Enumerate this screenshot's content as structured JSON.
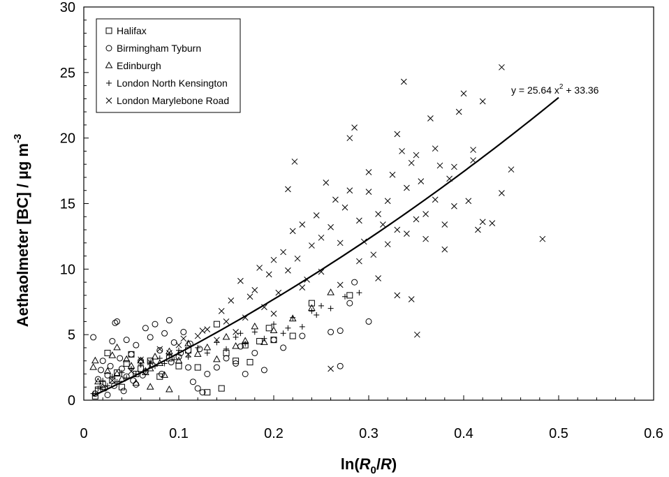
{
  "chart_data": {
    "type": "scatter",
    "xlabel": {
      "pre": "ln(",
      "r0": "R",
      "sub": "0",
      "mid": "/",
      "r": "R",
      "post": ")"
    },
    "ylabel": {
      "text": "Aethaolmeter [BC] / µg m",
      "sup": "-3"
    },
    "xlim": [
      0,
      0.6
    ],
    "ylim": [
      0,
      30
    ],
    "x_ticks": [
      "0",
      "0.1",
      "0.2",
      "0.3",
      "0.4",
      "0.5",
      "0.6"
    ],
    "y_ticks": [
      "0",
      "5",
      "10",
      "15",
      "20",
      "25",
      "30"
    ],
    "legend_position": "top-left",
    "fit": {
      "label_main": "y = 25.64 x",
      "label_sup": "2",
      "label_tail": " + 33.36",
      "a": 25.64,
      "b": 33.36,
      "x_range": [
        0.01,
        0.5
      ]
    },
    "series": [
      {
        "name": "Halifax",
        "marker": "square",
        "points": [
          [
            0.012,
            0.3
          ],
          [
            0.015,
            0.8
          ],
          [
            0.02,
            1.2
          ],
          [
            0.025,
            3.6
          ],
          [
            0.03,
            1.5
          ],
          [
            0.035,
            2.1
          ],
          [
            0.04,
            1.0
          ],
          [
            0.045,
            2.8
          ],
          [
            0.05,
            3.5
          ],
          [
            0.055,
            2.0
          ],
          [
            0.06,
            2.4
          ],
          [
            0.07,
            3.0
          ],
          [
            0.08,
            1.8
          ],
          [
            0.09,
            3.2
          ],
          [
            0.1,
            2.6
          ],
          [
            0.11,
            3.8
          ],
          [
            0.12,
            2.5
          ],
          [
            0.13,
            0.6
          ],
          [
            0.145,
            0.9
          ],
          [
            0.15,
            3.6
          ],
          [
            0.16,
            3.0
          ],
          [
            0.17,
            4.2
          ],
          [
            0.175,
            2.9
          ],
          [
            0.185,
            4.5
          ],
          [
            0.195,
            5.5
          ],
          [
            0.2,
            4.6
          ],
          [
            0.22,
            4.9
          ],
          [
            0.24,
            7.4
          ],
          [
            0.28,
            8.0
          ],
          [
            0.14,
            5.8
          ]
        ]
      },
      {
        "name": "Birmingham Tyburn",
        "marker": "circle",
        "points": [
          [
            0.01,
            4.8
          ],
          [
            0.012,
            0.5
          ],
          [
            0.015,
            1.6
          ],
          [
            0.018,
            2.3
          ],
          [
            0.02,
            3.0
          ],
          [
            0.022,
            0.9
          ],
          [
            0.025,
            1.9
          ],
          [
            0.028,
            2.6
          ],
          [
            0.03,
            4.5
          ],
          [
            0.033,
            5.9
          ],
          [
            0.035,
            6.0
          ],
          [
            0.038,
            3.2
          ],
          [
            0.04,
            2.4
          ],
          [
            0.045,
            1.8
          ],
          [
            0.05,
            3.5
          ],
          [
            0.055,
            4.2
          ],
          [
            0.06,
            3.0
          ],
          [
            0.065,
            2.2
          ],
          [
            0.07,
            4.8
          ],
          [
            0.075,
            5.8
          ],
          [
            0.08,
            3.8
          ],
          [
            0.085,
            5.1
          ],
          [
            0.09,
            6.1
          ],
          [
            0.095,
            4.4
          ],
          [
            0.1,
            3.3
          ],
          [
            0.105,
            5.2
          ],
          [
            0.11,
            2.5
          ],
          [
            0.115,
            1.4
          ],
          [
            0.12,
            0.9
          ],
          [
            0.125,
            0.6
          ],
          [
            0.13,
            2.0
          ],
          [
            0.14,
            2.5
          ],
          [
            0.15,
            3.2
          ],
          [
            0.16,
            2.8
          ],
          [
            0.165,
            4.1
          ],
          [
            0.17,
            2.0
          ],
          [
            0.18,
            3.6
          ],
          [
            0.19,
            2.3
          ],
          [
            0.2,
            4.6
          ],
          [
            0.21,
            4.0
          ],
          [
            0.23,
            4.9
          ],
          [
            0.26,
            5.2
          ],
          [
            0.27,
            5.3
          ],
          [
            0.28,
            7.4
          ],
          [
            0.285,
            9.0
          ],
          [
            0.27,
            2.6
          ],
          [
            0.3,
            6.0
          ],
          [
            0.055,
            1.2
          ],
          [
            0.065,
            5.5
          ],
          [
            0.045,
            4.6
          ],
          [
            0.025,
            0.4
          ],
          [
            0.032,
            1.1
          ],
          [
            0.042,
            0.7
          ],
          [
            0.052,
            1.5
          ],
          [
            0.062,
            1.9
          ],
          [
            0.072,
            2.7
          ],
          [
            0.082,
            2.0
          ],
          [
            0.092,
            2.9
          ],
          [
            0.102,
            3.6
          ],
          [
            0.112,
            4.3
          ],
          [
            0.122,
            3.9
          ]
        ]
      },
      {
        "name": "Edinburgh",
        "marker": "triangle",
        "points": [
          [
            0.01,
            2.5
          ],
          [
            0.012,
            3.0
          ],
          [
            0.015,
            1.4
          ],
          [
            0.02,
            1.0
          ],
          [
            0.025,
            2.2
          ],
          [
            0.03,
            3.4
          ],
          [
            0.035,
            2.0
          ],
          [
            0.04,
            1.6
          ],
          [
            0.045,
            3.1
          ],
          [
            0.05,
            2.6
          ],
          [
            0.055,
            1.3
          ],
          [
            0.06,
            3.0
          ],
          [
            0.065,
            2.1
          ],
          [
            0.07,
            2.4
          ],
          [
            0.075,
            3.3
          ],
          [
            0.08,
            2.8
          ],
          [
            0.085,
            1.9
          ],
          [
            0.09,
            3.7
          ],
          [
            0.1,
            3.0
          ],
          [
            0.11,
            4.3
          ],
          [
            0.12,
            3.5
          ],
          [
            0.13,
            4.0
          ],
          [
            0.14,
            3.1
          ],
          [
            0.15,
            4.8
          ],
          [
            0.16,
            4.1
          ],
          [
            0.17,
            4.5
          ],
          [
            0.18,
            5.6
          ],
          [
            0.19,
            4.4
          ],
          [
            0.2,
            5.3
          ],
          [
            0.22,
            6.2
          ],
          [
            0.24,
            7.0
          ],
          [
            0.26,
            8.2
          ],
          [
            0.07,
            1.0
          ],
          [
            0.09,
            0.8
          ],
          [
            0.035,
            4.0
          ]
        ]
      },
      {
        "name": "London North Kensington",
        "marker": "plus",
        "points": [
          [
            0.01,
            0.5
          ],
          [
            0.015,
            0.9
          ],
          [
            0.02,
            1.5
          ],
          [
            0.025,
            1.1
          ],
          [
            0.03,
            1.8
          ],
          [
            0.035,
            1.4
          ],
          [
            0.04,
            2.1
          ],
          [
            0.045,
            1.7
          ],
          [
            0.05,
            2.4
          ],
          [
            0.055,
            2.0
          ],
          [
            0.06,
            2.7
          ],
          [
            0.065,
            2.3
          ],
          [
            0.07,
            2.9
          ],
          [
            0.075,
            2.6
          ],
          [
            0.08,
            3.2
          ],
          [
            0.085,
            2.8
          ],
          [
            0.09,
            3.5
          ],
          [
            0.095,
            3.1
          ],
          [
            0.1,
            3.8
          ],
          [
            0.11,
            3.3
          ],
          [
            0.12,
            4.0
          ],
          [
            0.13,
            3.6
          ],
          [
            0.14,
            4.4
          ],
          [
            0.15,
            3.9
          ],
          [
            0.16,
            4.8
          ],
          [
            0.17,
            4.3
          ],
          [
            0.18,
            5.2
          ],
          [
            0.19,
            4.7
          ],
          [
            0.2,
            5.8
          ],
          [
            0.21,
            5.1
          ],
          [
            0.22,
            6.3
          ],
          [
            0.23,
            5.6
          ],
          [
            0.24,
            6.8
          ],
          [
            0.25,
            7.2
          ],
          [
            0.26,
            7.0
          ],
          [
            0.275,
            7.9
          ],
          [
            0.29,
            8.2
          ],
          [
            0.165,
            5.1
          ],
          [
            0.215,
            5.5
          ],
          [
            0.245,
            6.5
          ]
        ]
      },
      {
        "name": "London Marylebone Road",
        "marker": "x",
        "points": [
          [
            0.03,
            1.5
          ],
          [
            0.05,
            2.2
          ],
          [
            0.07,
            2.9
          ],
          [
            0.09,
            3.6
          ],
          [
            0.1,
            4.2
          ],
          [
            0.11,
            3.5
          ],
          [
            0.12,
            4.9
          ],
          [
            0.13,
            5.4
          ],
          [
            0.14,
            4.6
          ],
          [
            0.15,
            6.0
          ],
          [
            0.155,
            7.6
          ],
          [
            0.16,
            5.2
          ],
          [
            0.165,
            9.1
          ],
          [
            0.17,
            6.3
          ],
          [
            0.175,
            7.9
          ],
          [
            0.18,
            8.4
          ],
          [
            0.185,
            10.1
          ],
          [
            0.19,
            7.1
          ],
          [
            0.195,
            9.6
          ],
          [
            0.2,
            10.7
          ],
          [
            0.205,
            8.2
          ],
          [
            0.21,
            11.3
          ],
          [
            0.215,
            9.9
          ],
          [
            0.22,
            12.9
          ],
          [
            0.222,
            18.2
          ],
          [
            0.225,
            10.8
          ],
          [
            0.23,
            13.4
          ],
          [
            0.235,
            9.2
          ],
          [
            0.24,
            11.8
          ],
          [
            0.245,
            14.1
          ],
          [
            0.25,
            12.4
          ],
          [
            0.255,
            16.6
          ],
          [
            0.26,
            13.2
          ],
          [
            0.265,
            15.3
          ],
          [
            0.27,
            12.0
          ],
          [
            0.275,
            14.7
          ],
          [
            0.28,
            16.0
          ],
          [
            0.285,
            20.8
          ],
          [
            0.29,
            13.7
          ],
          [
            0.295,
            12.1
          ],
          [
            0.3,
            17.4
          ],
          [
            0.305,
            11.1
          ],
          [
            0.31,
            14.2
          ],
          [
            0.315,
            13.4
          ],
          [
            0.32,
            15.2
          ],
          [
            0.325,
            17.2
          ],
          [
            0.33,
            13.0
          ],
          [
            0.335,
            19.0
          ],
          [
            0.337,
            24.3
          ],
          [
            0.34,
            16.2
          ],
          [
            0.345,
            18.1
          ],
          [
            0.35,
            13.8
          ],
          [
            0.355,
            16.7
          ],
          [
            0.36,
            14.2
          ],
          [
            0.365,
            21.5
          ],
          [
            0.37,
            15.3
          ],
          [
            0.375,
            17.9
          ],
          [
            0.38,
            13.4
          ],
          [
            0.385,
            16.9
          ],
          [
            0.39,
            14.8
          ],
          [
            0.395,
            22.0
          ],
          [
            0.4,
            23.4
          ],
          [
            0.405,
            15.2
          ],
          [
            0.41,
            19.1
          ],
          [
            0.415,
            13.0
          ],
          [
            0.42,
            13.6
          ],
          [
            0.43,
            13.5
          ],
          [
            0.44,
            25.4
          ],
          [
            0.44,
            15.8
          ],
          [
            0.45,
            17.6
          ],
          [
            0.483,
            12.3
          ],
          [
            0.351,
            5.0
          ],
          [
            0.26,
            2.4
          ],
          [
            0.33,
            8.0
          ],
          [
            0.345,
            7.7
          ],
          [
            0.2,
            6.6
          ],
          [
            0.23,
            8.6
          ],
          [
            0.25,
            9.8
          ],
          [
            0.27,
            8.8
          ],
          [
            0.29,
            10.6
          ],
          [
            0.31,
            9.3
          ],
          [
            0.32,
            11.9
          ],
          [
            0.34,
            12.7
          ],
          [
            0.36,
            12.3
          ],
          [
            0.38,
            11.5
          ],
          [
            0.39,
            17.8
          ],
          [
            0.42,
            22.8
          ],
          [
            0.41,
            18.3
          ],
          [
            0.215,
            16.1
          ],
          [
            0.28,
            20.0
          ],
          [
            0.3,
            15.9
          ],
          [
            0.33,
            20.3
          ],
          [
            0.35,
            18.7
          ],
          [
            0.37,
            19.2
          ],
          [
            0.06,
            3.1
          ],
          [
            0.08,
            3.9
          ],
          [
            0.105,
            4.7
          ],
          [
            0.125,
            5.3
          ],
          [
            0.145,
            6.8
          ]
        ]
      }
    ]
  }
}
